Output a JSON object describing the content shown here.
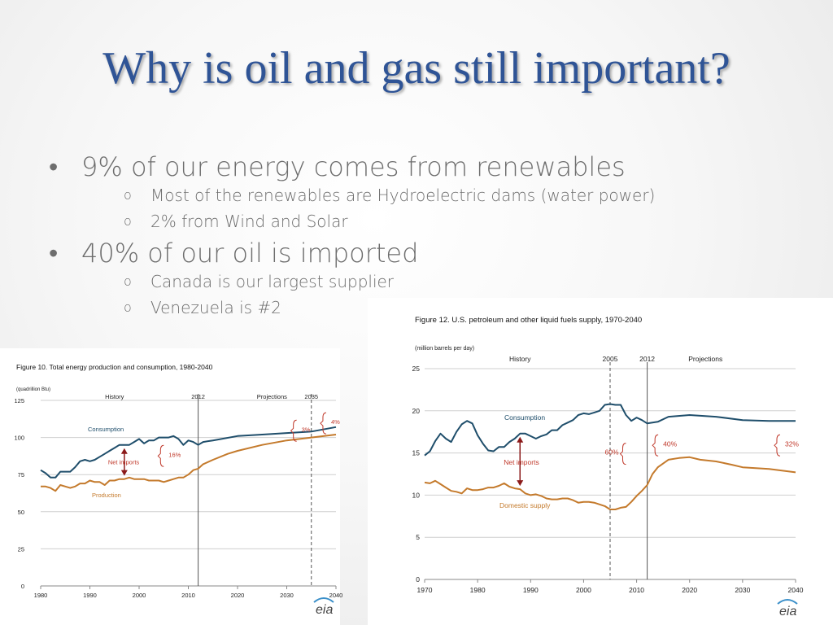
{
  "slide": {
    "title": "Why is oil and gas still important?",
    "bullets": [
      {
        "text": "9% of our energy comes from renewables",
        "subs": [
          "Most of the renewables are Hydroelectric dams (water power)",
          "2% from Wind and Solar"
        ]
      },
      {
        "text": "40% of our oil is imported",
        "subs": [
          "Canada is our largest supplier",
          "Venezuela is #2"
        ]
      }
    ],
    "bullet_glyph": "•",
    "sub_glyph": "o"
  },
  "chart_data": [
    {
      "type": "line",
      "title": "Figure 10. Total energy production and consumption, 1980-2040",
      "units": "(quadrillion Btu)",
      "xlim": [
        1980,
        2040
      ],
      "ylim": [
        0,
        125
      ],
      "xticks": [
        1980,
        1990,
        2000,
        2010,
        2020,
        2030,
        2040
      ],
      "yticks": [
        0,
        25,
        50,
        75,
        100,
        125
      ],
      "grid": true,
      "region_labels": [
        {
          "text": "History",
          "x": 1995
        },
        {
          "text": "Projections",
          "x": 2027
        }
      ],
      "markers": [
        {
          "year": 2012,
          "label": "2012",
          "style": "solid"
        },
        {
          "year": 2035,
          "label": "2035",
          "style": "dashed"
        }
      ],
      "series": [
        {
          "name": "Consumption",
          "color": "#1f4e6b",
          "points": [
            [
              1980,
              78
            ],
            [
              1981,
              76
            ],
            [
              1982,
              73
            ],
            [
              1983,
              73
            ],
            [
              1984,
              77
            ],
            [
              1985,
              77
            ],
            [
              1986,
              77
            ],
            [
              1987,
              80
            ],
            [
              1988,
              84
            ],
            [
              1989,
              85
            ],
            [
              1990,
              84
            ],
            [
              1991,
              85
            ],
            [
              1992,
              87
            ],
            [
              1993,
              89
            ],
            [
              1994,
              91
            ],
            [
              1995,
              93
            ],
            [
              1996,
              95
            ],
            [
              1997,
              95
            ],
            [
              1998,
              95
            ],
            [
              1999,
              97
            ],
            [
              2000,
              99
            ],
            [
              2001,
              96
            ],
            [
              2002,
              98
            ],
            [
              2003,
              98
            ],
            [
              2004,
              100
            ],
            [
              2005,
              100
            ],
            [
              2006,
              100
            ],
            [
              2007,
              101
            ],
            [
              2008,
              99
            ],
            [
              2009,
              95
            ],
            [
              2010,
              98
            ],
            [
              2011,
              97
            ],
            [
              2012,
              95
            ],
            [
              2013,
              97
            ],
            [
              2015,
              98
            ],
            [
              2020,
              101
            ],
            [
              2025,
              102
            ],
            [
              2030,
              103
            ],
            [
              2035,
              104
            ],
            [
              2040,
              107
            ]
          ]
        },
        {
          "name": "Production",
          "color": "#c47a2c",
          "points": [
            [
              1980,
              67
            ],
            [
              1981,
              67
            ],
            [
              1982,
              66
            ],
            [
              1983,
              64
            ],
            [
              1984,
              68
            ],
            [
              1985,
              67
            ],
            [
              1986,
              66
            ],
            [
              1987,
              67
            ],
            [
              1988,
              69
            ],
            [
              1989,
              69
            ],
            [
              1990,
              71
            ],
            [
              1991,
              70
            ],
            [
              1992,
              70
            ],
            [
              1993,
              68
            ],
            [
              1994,
              71
            ],
            [
              1995,
              71
            ],
            [
              1996,
              72
            ],
            [
              1997,
              72
            ],
            [
              1998,
              73
            ],
            [
              1999,
              72
            ],
            [
              2000,
              72
            ],
            [
              2001,
              72
            ],
            [
              2002,
              71
            ],
            [
              2003,
              71
            ],
            [
              2004,
              71
            ],
            [
              2005,
              70
            ],
            [
              2006,
              71
            ],
            [
              2007,
              72
            ],
            [
              2008,
              73
            ],
            [
              2009,
              73
            ],
            [
              2010,
              75
            ],
            [
              2011,
              78
            ],
            [
              2012,
              79
            ],
            [
              2013,
              82
            ],
            [
              2015,
              85
            ],
            [
              2018,
              89
            ],
            [
              2020,
              91
            ],
            [
              2025,
              95
            ],
            [
              2030,
              98
            ],
            [
              2035,
              100
            ],
            [
              2040,
              102
            ]
          ]
        }
      ],
      "annotations": [
        {
          "text": "Net imports",
          "x": 1997,
          "y": 82
        },
        {
          "text": "16%",
          "x": 2006,
          "y": 87
        },
        {
          "text": "3%",
          "x": 2033,
          "y": 104
        },
        {
          "text": "4%",
          "x": 2039,
          "y": 109
        }
      ],
      "logo": "eia"
    },
    {
      "type": "line",
      "title": "Figure 12. U.S. petroleum and other liquid fuels supply, 1970-2040",
      "units": "(million barrels per day)",
      "xlim": [
        1970,
        2040
      ],
      "ylim": [
        0,
        25
      ],
      "xticks": [
        1970,
        1980,
        1990,
        2000,
        2010,
        2020,
        2030,
        2040
      ],
      "yticks": [
        0,
        5,
        10,
        15,
        20,
        25
      ],
      "grid": true,
      "region_labels": [
        {
          "text": "History",
          "x": 1988
        },
        {
          "text": "Projections",
          "x": 2023
        }
      ],
      "markers": [
        {
          "year": 2005,
          "label": "2005",
          "style": "dashed"
        },
        {
          "year": 2012,
          "label": "2012",
          "style": "solid"
        }
      ],
      "series": [
        {
          "name": "Consumption",
          "color": "#1f4e6b",
          "points": [
            [
              1970,
              14.7
            ],
            [
              1971,
              15.2
            ],
            [
              1972,
              16.4
            ],
            [
              1973,
              17.3
            ],
            [
              1974,
              16.7
            ],
            [
              1975,
              16.3
            ],
            [
              1976,
              17.5
            ],
            [
              1977,
              18.4
            ],
            [
              1978,
              18.8
            ],
            [
              1979,
              18.5
            ],
            [
              1980,
              17.1
            ],
            [
              1981,
              16.1
            ],
            [
              1982,
              15.3
            ],
            [
              1983,
              15.2
            ],
            [
              1984,
              15.7
            ],
            [
              1985,
              15.7
            ],
            [
              1986,
              16.3
            ],
            [
              1987,
              16.7
            ],
            [
              1988,
              17.3
            ],
            [
              1989,
              17.3
            ],
            [
              1990,
              17.0
            ],
            [
              1991,
              16.7
            ],
            [
              1992,
              17.0
            ],
            [
              1993,
              17.2
            ],
            [
              1994,
              17.7
            ],
            [
              1995,
              17.7
            ],
            [
              1996,
              18.3
            ],
            [
              1997,
              18.6
            ],
            [
              1998,
              18.9
            ],
            [
              1999,
              19.5
            ],
            [
              2000,
              19.7
            ],
            [
              2001,
              19.6
            ],
            [
              2002,
              19.8
            ],
            [
              2003,
              20.0
            ],
            [
              2004,
              20.7
            ],
            [
              2005,
              20.8
            ],
            [
              2006,
              20.7
            ],
            [
              2007,
              20.7
            ],
            [
              2008,
              19.5
            ],
            [
              2009,
              18.8
            ],
            [
              2010,
              19.2
            ],
            [
              2011,
              18.9
            ],
            [
              2012,
              18.5
            ],
            [
              2014,
              18.7
            ],
            [
              2016,
              19.3
            ],
            [
              2020,
              19.5
            ],
            [
              2025,
              19.3
            ],
            [
              2030,
              18.9
            ],
            [
              2035,
              18.8
            ],
            [
              2040,
              18.8
            ]
          ]
        },
        {
          "name": "Domestic supply",
          "color": "#c47a2c",
          "points": [
            [
              1970,
              11.5
            ],
            [
              1971,
              11.4
            ],
            [
              1972,
              11.7
            ],
            [
              1973,
              11.3
            ],
            [
              1974,
              10.9
            ],
            [
              1975,
              10.5
            ],
            [
              1976,
              10.4
            ],
            [
              1977,
              10.2
            ],
            [
              1978,
              10.8
            ],
            [
              1979,
              10.6
            ],
            [
              1980,
              10.6
            ],
            [
              1981,
              10.7
            ],
            [
              1982,
              10.9
            ],
            [
              1983,
              10.9
            ],
            [
              1984,
              11.1
            ],
            [
              1985,
              11.4
            ],
            [
              1986,
              11.0
            ],
            [
              1987,
              10.8
            ],
            [
              1988,
              10.7
            ],
            [
              1989,
              10.2
            ],
            [
              1990,
              10.0
            ],
            [
              1991,
              10.1
            ],
            [
              1992,
              9.9
            ],
            [
              1993,
              9.6
            ],
            [
              1994,
              9.5
            ],
            [
              1995,
              9.5
            ],
            [
              1996,
              9.6
            ],
            [
              1997,
              9.6
            ],
            [
              1998,
              9.4
            ],
            [
              1999,
              9.1
            ],
            [
              2000,
              9.2
            ],
            [
              2001,
              9.2
            ],
            [
              2002,
              9.1
            ],
            [
              2003,
              8.9
            ],
            [
              2004,
              8.7
            ],
            [
              2005,
              8.3
            ],
            [
              2006,
              8.3
            ],
            [
              2007,
              8.5
            ],
            [
              2008,
              8.6
            ],
            [
              2009,
              9.2
            ],
            [
              2010,
              9.9
            ],
            [
              2011,
              10.5
            ],
            [
              2012,
              11.2
            ],
            [
              2013,
              12.5
            ],
            [
              2014,
              13.3
            ],
            [
              2016,
              14.2
            ],
            [
              2018,
              14.4
            ],
            [
              2020,
              14.5
            ],
            [
              2022,
              14.2
            ],
            [
              2025,
              14.0
            ],
            [
              2028,
              13.6
            ],
            [
              2030,
              13.3
            ],
            [
              2035,
              13.1
            ],
            [
              2040,
              12.7
            ]
          ]
        }
      ],
      "annotations": [
        {
          "text": "Net imports",
          "x": 1988,
          "y": 13.6
        },
        {
          "text": "60%",
          "x": 2004,
          "y": 14.8
        },
        {
          "text": "40%",
          "x": 2015,
          "y": 15.8
        },
        {
          "text": "32%",
          "x": 2038,
          "y": 15.8
        }
      ],
      "logo": "eia"
    }
  ]
}
